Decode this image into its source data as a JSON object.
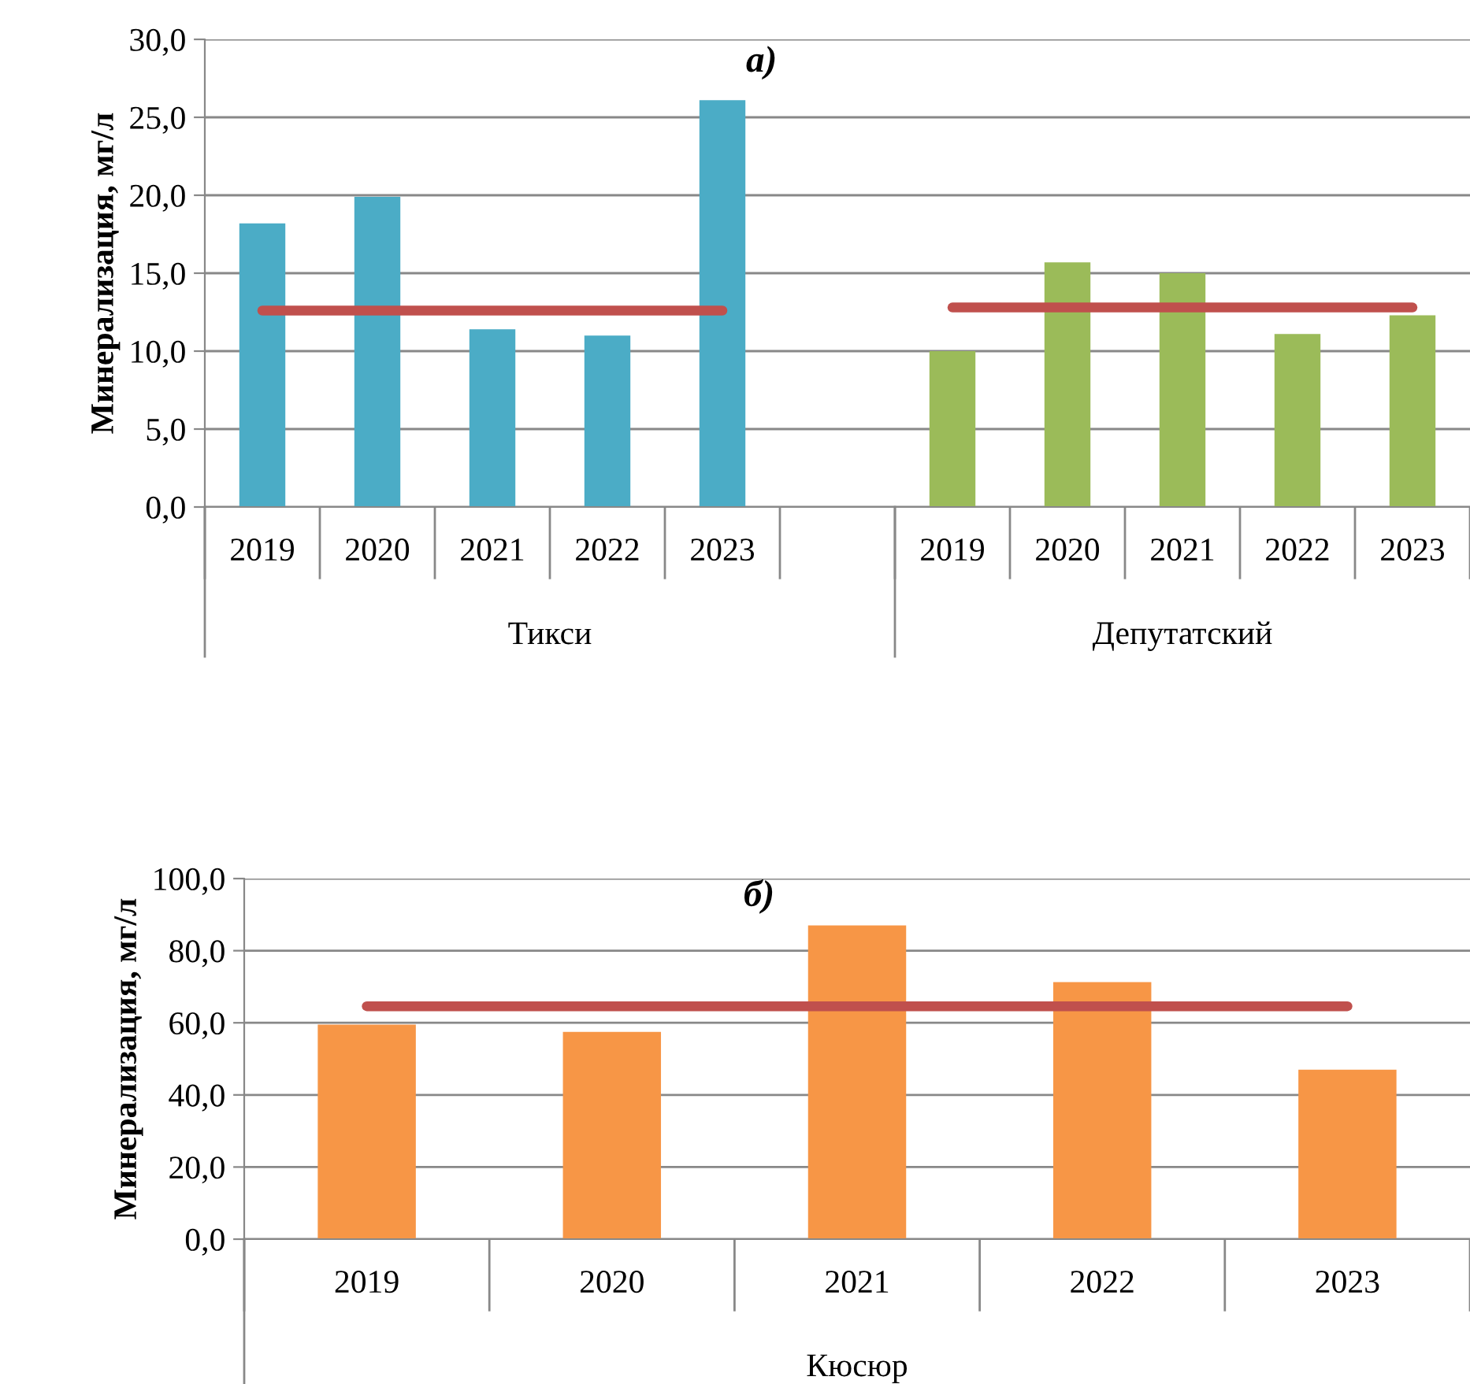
{
  "chart_data": [
    {
      "type": "bar",
      "title": "а)",
      "ylabel": "Минерализация, мг/л",
      "categories": [
        "2019",
        "2020",
        "2021",
        "2022",
        "2023",
        null,
        "2019",
        "2020",
        "2021",
        "2022",
        "2023"
      ],
      "series": [
        {
          "color": "#4bacc6",
          "values": [
            18.2,
            19.9,
            11.4,
            11.0,
            26.1,
            null,
            null,
            null,
            null,
            null,
            null
          ]
        },
        {
          "color": "#9bbb59",
          "values": [
            null,
            null,
            null,
            null,
            null,
            null,
            10.0,
            15.7,
            15.0,
            11.1,
            12.3
          ]
        },
        {
          "type": "line",
          "color": "#c0504d",
          "values": [
            12.6,
            12.6,
            12.6,
            12.6,
            12.6,
            null,
            null,
            null,
            null,
            null,
            null
          ]
        },
        {
          "type": "line",
          "color": "#c0504d",
          "values": [
            null,
            null,
            null,
            null,
            null,
            null,
            12.8,
            12.8,
            12.8,
            12.8,
            12.8
          ]
        }
      ],
      "annotations": [
        "Тикси",
        "Депутатский"
      ],
      "ylim": [
        0,
        30
      ],
      "yticks": [
        {
          "value": 0,
          "label": "0,0"
        },
        {
          "value": 5,
          "label": "5,0"
        },
        {
          "value": 10,
          "label": "10,0"
        },
        {
          "value": 15,
          "label": "15,0"
        },
        {
          "value": 20,
          "label": "20,0"
        },
        {
          "value": 25,
          "label": "25,0"
        },
        {
          "value": 30,
          "label": "30,0"
        }
      ],
      "grid": "y"
    },
    {
      "type": "bar",
      "title": "б)",
      "ylabel": "Минерализация, мг/л",
      "categories": [
        "2019",
        "2020",
        "2021",
        "2022",
        "2023"
      ],
      "series": [
        {
          "color": "#f79646",
          "values": [
            59.5,
            57.5,
            87.0,
            71.3,
            47.0
          ]
        },
        {
          "type": "line",
          "color": "#c0504d",
          "values": [
            64.6,
            64.6,
            64.6,
            64.6,
            64.6
          ]
        }
      ],
      "annotations": [
        "Кюсюр"
      ],
      "ylim": [
        0,
        100
      ],
      "yticks": [
        {
          "value": 0,
          "label": "0,0"
        },
        {
          "value": 20,
          "label": "20,0"
        },
        {
          "value": 40,
          "label": "40,0"
        },
        {
          "value": 60,
          "label": "60,0"
        },
        {
          "value": 80,
          "label": "80,0"
        },
        {
          "value": 100,
          "label": "100,0"
        }
      ],
      "grid": "y"
    }
  ]
}
